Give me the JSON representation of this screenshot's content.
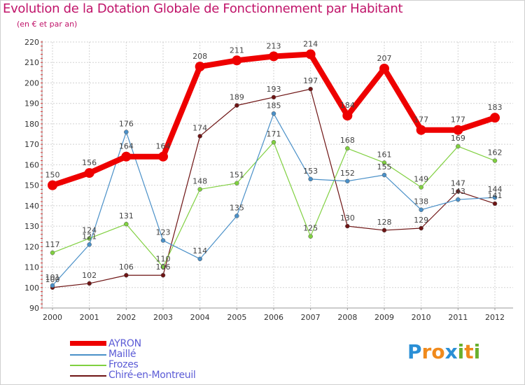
{
  "title": "Evolution de la Dotation Globale de Fonctionnement par Habitant",
  "subtitle": "(en € et par an)",
  "logo": {
    "text": "Proxiti",
    "letters": [
      "P",
      "r",
      "o",
      "x",
      "i",
      "t",
      "i"
    ],
    "colors": [
      "#2a8fd6",
      "#f08a1c",
      "#f08a1c",
      "#2a8fd6",
      "#6ab02e",
      "#f08a1c",
      "#6ab02e"
    ]
  },
  "chart_data": {
    "type": "line",
    "title": "Evolution de la Dotation Globale de Fonctionnement par Habitant",
    "ylabel": "(en € et par an)",
    "xlabel": "",
    "ylim": [
      90,
      220
    ],
    "yticks": [
      "90",
      "100",
      "110",
      "120",
      "130",
      "140",
      "150",
      "160",
      "170",
      "180",
      "190",
      "200",
      "210",
      "220"
    ],
    "categories": [
      "2000",
      "2001",
      "2002",
      "2003",
      "2004",
      "2005",
      "2006",
      "2007",
      "2008",
      "2009",
      "2010",
      "2011",
      "2012"
    ],
    "series": [
      {
        "name": "AYRON",
        "color": "#ee0000",
        "values": [
          150,
          156,
          164,
          164,
          208,
          211,
          213,
          214,
          184,
          207,
          177,
          177,
          183
        ],
        "labels": [
          "150",
          "156",
          "164",
          "164",
          "208",
          "211",
          "213",
          "214",
          "184",
          "207",
          "177",
          "177",
          "183"
        ]
      },
      {
        "name": "Maillé",
        "color": "#4a90c8",
        "values": [
          101,
          121,
          176,
          123,
          114,
          135,
          185,
          153,
          152,
          155,
          138,
          143,
          144
        ],
        "labels": [
          "101",
          "121",
          "176",
          "123",
          "114",
          "135",
          "185",
          "153",
          "152",
          "155",
          "138",
          "143",
          "144"
        ]
      },
      {
        "name": "Frozes",
        "color": "#80d040",
        "values": [
          117,
          124,
          131,
          110,
          148,
          151,
          171,
          125,
          168,
          161,
          149,
          169,
          162
        ],
        "labels": [
          "117",
          "124",
          "131",
          "110",
          "148",
          "151",
          "171",
          "125",
          "168",
          "161",
          "149",
          "169",
          "162"
        ]
      },
      {
        "name": "Chiré-en-Montreuil",
        "color": "#6e1414",
        "values": [
          100,
          102,
          106,
          106,
          174,
          189,
          193,
          197,
          130,
          128,
          129,
          147,
          141
        ],
        "labels": [
          "100",
          "102",
          "106",
          "106",
          "174",
          "189",
          "193",
          "197",
          "130",
          "128",
          "129",
          "147",
          "141"
        ]
      }
    ]
  }
}
